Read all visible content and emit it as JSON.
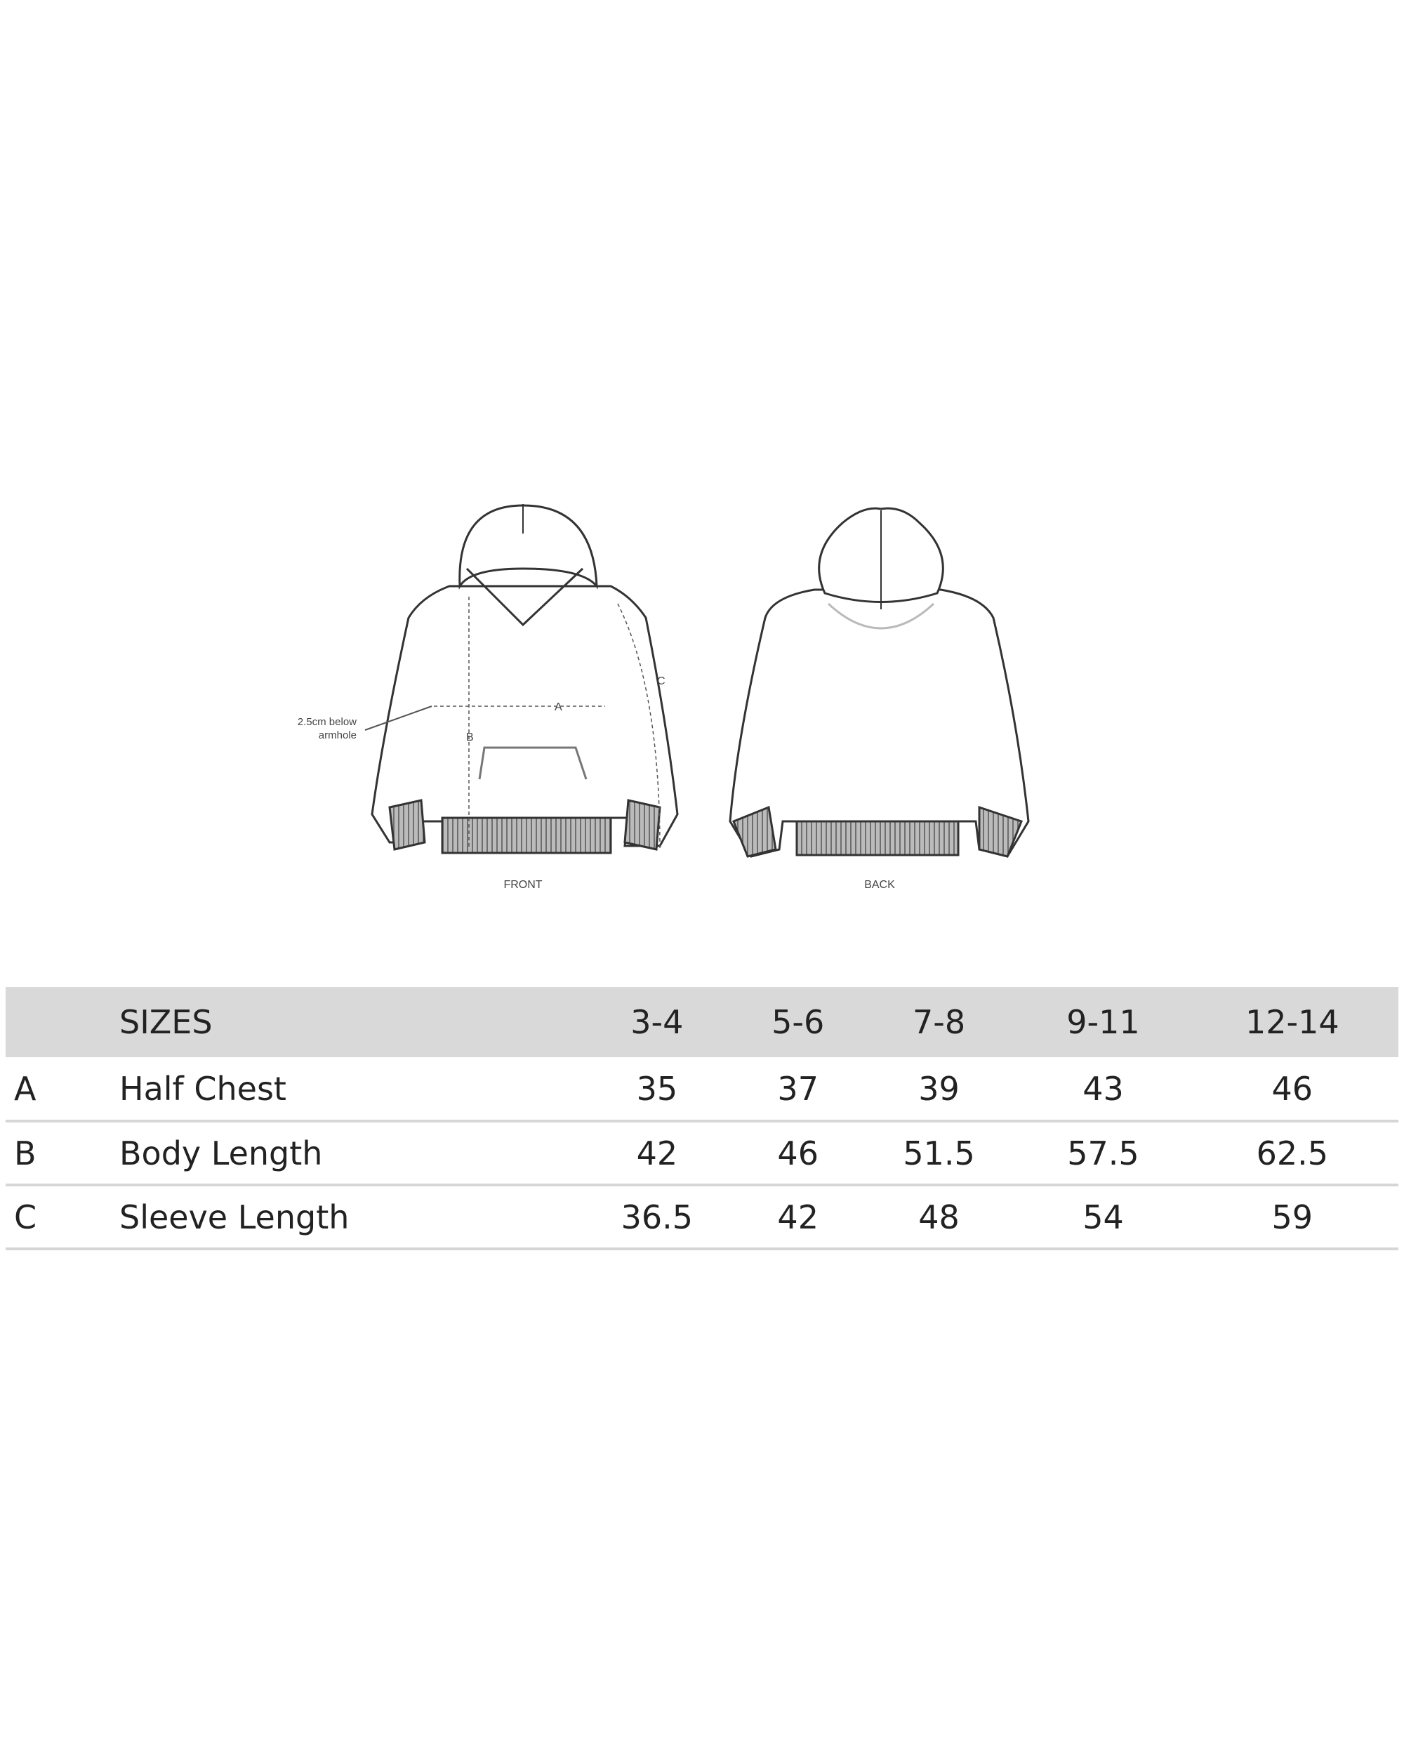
{
  "diagram": {
    "front_label": "FRONT",
    "back_label": "BACK",
    "annotation": [
      "2.5cm below",
      "armhole"
    ],
    "markers": {
      "a": "A",
      "b": "B",
      "c": "C"
    }
  },
  "table": {
    "header": {
      "code": "",
      "name": "SIZES",
      "sizes": [
        "3-4",
        "5-6",
        "7-8",
        "9-11",
        "12-14"
      ]
    },
    "rows": [
      {
        "code": "A",
        "name": "Half Chest",
        "values": [
          "35",
          "37",
          "39",
          "43",
          "46"
        ]
      },
      {
        "code": "B",
        "name": "Body Length",
        "values": [
          "42",
          "46",
          "51.5",
          "57.5",
          "62.5"
        ]
      },
      {
        "code": "C",
        "name": "Sleeve Length",
        "values": [
          "36.5",
          "42",
          "48",
          "54",
          "59"
        ]
      }
    ]
  },
  "colors": {
    "header_bg": "#d9d9d9",
    "divider": "#d6d6d6"
  }
}
